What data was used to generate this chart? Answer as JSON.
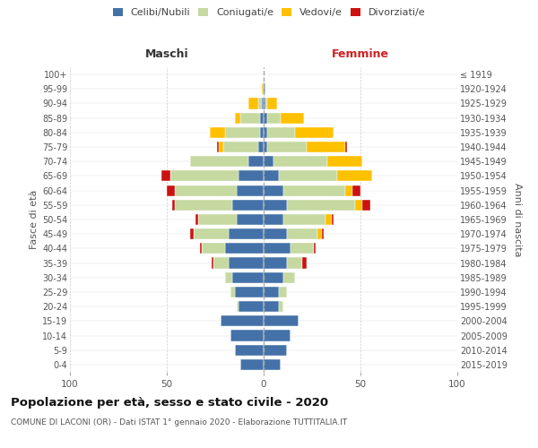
{
  "age_groups": [
    "0-4",
    "5-9",
    "10-14",
    "15-19",
    "20-24",
    "25-29",
    "30-34",
    "35-39",
    "40-44",
    "45-49",
    "50-54",
    "55-59",
    "60-64",
    "65-69",
    "70-74",
    "75-79",
    "80-84",
    "85-89",
    "90-94",
    "95-99",
    "100+"
  ],
  "birth_years": [
    "2015-2019",
    "2010-2014",
    "2005-2009",
    "2000-2004",
    "1995-1999",
    "1990-1994",
    "1985-1989",
    "1980-1984",
    "1975-1979",
    "1970-1974",
    "1965-1969",
    "1960-1964",
    "1955-1959",
    "1950-1954",
    "1945-1949",
    "1940-1944",
    "1935-1939",
    "1930-1934",
    "1925-1929",
    "1920-1924",
    "≤ 1919"
  ],
  "males": {
    "celibi": [
      12,
      15,
      17,
      22,
      13,
      15,
      16,
      18,
      20,
      18,
      14,
      16,
      14,
      13,
      8,
      3,
      2,
      2,
      1,
      0,
      0
    ],
    "coniugati": [
      0,
      0,
      0,
      0,
      1,
      2,
      4,
      8,
      12,
      18,
      20,
      30,
      32,
      35,
      30,
      18,
      18,
      10,
      2,
      0,
      0
    ],
    "vedovi": [
      0,
      0,
      0,
      0,
      0,
      0,
      0,
      0,
      0,
      0,
      0,
      0,
      0,
      0,
      0,
      2,
      8,
      3,
      5,
      1,
      0
    ],
    "divorziati": [
      0,
      0,
      0,
      0,
      0,
      0,
      0,
      1,
      1,
      2,
      1,
      1,
      4,
      5,
      0,
      1,
      0,
      0,
      0,
      0,
      0
    ]
  },
  "females": {
    "nubili": [
      9,
      12,
      14,
      18,
      8,
      8,
      10,
      12,
      14,
      12,
      10,
      12,
      10,
      8,
      5,
      2,
      2,
      2,
      1,
      1,
      0
    ],
    "coniugate": [
      0,
      0,
      0,
      0,
      2,
      4,
      6,
      8,
      12,
      16,
      22,
      35,
      32,
      30,
      28,
      20,
      14,
      7,
      1,
      0,
      0
    ],
    "vedove": [
      0,
      0,
      0,
      0,
      0,
      0,
      0,
      0,
      0,
      2,
      3,
      4,
      4,
      18,
      18,
      20,
      20,
      12,
      5,
      0,
      0
    ],
    "divorziate": [
      0,
      0,
      0,
      0,
      0,
      0,
      0,
      2,
      1,
      1,
      1,
      4,
      4,
      0,
      0,
      1,
      0,
      0,
      0,
      0,
      0
    ]
  },
  "colors": {
    "celibi": "#4472a8",
    "coniugati": "#c5d9a0",
    "vedovi": "#ffc000",
    "divorziati": "#cc1111"
  },
  "title": "Popolazione per età, sesso e stato civile - 2020",
  "subtitle": "COMUNE DI LACONI (OR) - Dati ISTAT 1° gennaio 2020 - Elaborazione TUTTITALIA.IT",
  "xlabel_left": "Maschi",
  "xlabel_right": "Femmine",
  "ylabel_left": "Fasce di età",
  "ylabel_right": "Anni di nascita",
  "xlim": 100,
  "legend_labels": [
    "Celibi/Nubili",
    "Coniugati/e",
    "Vedovi/e",
    "Divorziati/e"
  ],
  "background_color": "#ffffff",
  "maschi_color": "#333333",
  "femmine_color": "#cc2222"
}
